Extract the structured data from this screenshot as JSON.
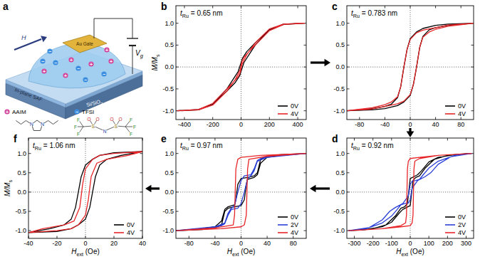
{
  "diagram": {
    "panel_label": "a",
    "field_label": "H",
    "gate_label": "Au Gate",
    "voltage_label": {
      "text": "V",
      "subscript": "g"
    },
    "layer_label": "In-plane SAF",
    "substrate_label": {
      "text": "Si/SiO",
      "subscript": "2"
    },
    "cation": {
      "name": "AAIM",
      "sign": "+",
      "atoms": [
        "N",
        "N"
      ]
    },
    "anion": {
      "name": "TFSI",
      "sign": "−",
      "atoms": [
        "F",
        "F",
        "F",
        "S",
        "O",
        "O",
        "N",
        "S",
        "O",
        "O",
        "F",
        "F",
        "F"
      ]
    }
  },
  "chart_data": [
    {
      "type": "line",
      "panel_label": "b",
      "annotation": {
        "symbol": "t",
        "subscript": "Ru",
        "text": " = 0.65 nm"
      },
      "y_label": {
        "text": "M/M",
        "subscript": "s"
      },
      "xlim": [
        -460,
        460
      ],
      "xticks": [
        -400,
        -200,
        0,
        200,
        400
      ],
      "ylim": [
        -1.2,
        1.4
      ],
      "yticks": [
        {
          "value": -1,
          "label": "-1.0"
        },
        {
          "value": -0.5,
          "label": "-0.5"
        },
        {
          "value": 0,
          "label": "0.0"
        },
        {
          "value": 0.5,
          "label": "0.5"
        },
        {
          "value": 1,
          "label": "1.0"
        }
      ],
      "legend": "lower right",
      "series": [
        {
          "name": "0V",
          "color": "#000000",
          "x": [
            450,
            300,
            200,
            100,
            40,
            10,
            0,
            -20,
            -60,
            -100,
            -200,
            -300,
            -450,
            -300,
            -200,
            -100,
            -40,
            -10,
            0,
            20,
            60,
            100,
            200,
            300,
            450
          ],
          "values": [
            1.0,
            0.98,
            0.85,
            0.55,
            0.35,
            0.2,
            0.1,
            -0.1,
            -0.3,
            -0.5,
            -0.85,
            -0.97,
            -1.0,
            -0.98,
            -0.85,
            -0.55,
            -0.35,
            -0.2,
            -0.1,
            0.1,
            0.3,
            0.5,
            0.85,
            0.97,
            1.0
          ]
        },
        {
          "name": "4V",
          "color": "#e8262a",
          "x": [
            450,
            300,
            200,
            100,
            50,
            20,
            5,
            -5,
            -40,
            -100,
            -200,
            -300,
            -450,
            -300,
            -200,
            -100,
            -50,
            -20,
            -5,
            5,
            40,
            100,
            200,
            300,
            450
          ],
          "values": [
            1.0,
            0.97,
            0.83,
            0.5,
            0.33,
            0.22,
            0.12,
            -0.05,
            -0.28,
            -0.55,
            -0.87,
            -0.98,
            -1.0,
            -0.97,
            -0.83,
            -0.5,
            -0.33,
            -0.22,
            -0.12,
            0.05,
            0.28,
            0.55,
            0.87,
            0.98,
            1.0
          ]
        }
      ]
    },
    {
      "type": "line",
      "panel_label": "c",
      "annotation": {
        "symbol": "t",
        "subscript": "Ru",
        "text": " = 0.783 nm"
      },
      "xlim": [
        -100,
        100
      ],
      "xticks": [
        -80,
        -40,
        0,
        40,
        80
      ],
      "ylim": [
        -1.2,
        1.4
      ],
      "yticks": [
        {
          "value": -1,
          "label": "-1.0"
        },
        {
          "value": -0.5,
          "label": "-0.5"
        },
        {
          "value": 0,
          "label": "0.0"
        },
        {
          "value": 0.5,
          "label": "0.5"
        },
        {
          "value": 1,
          "label": "1.0"
        }
      ],
      "legend": "lower right",
      "series": [
        {
          "name": "0V",
          "color": "#000000",
          "x": [
            100,
            60,
            40,
            20,
            10,
            0,
            -5,
            -10,
            -15,
            -20,
            -30,
            -40,
            -60,
            -100,
            -60,
            -40,
            -20,
            -10,
            0,
            5,
            10,
            15,
            20,
            30,
            40,
            60,
            100
          ],
          "values": [
            1.0,
            0.98,
            0.95,
            0.88,
            0.8,
            0.65,
            0.4,
            0.0,
            -0.45,
            -0.7,
            -0.85,
            -0.9,
            -0.95,
            -1.0,
            -0.98,
            -0.95,
            -0.88,
            -0.8,
            -0.65,
            -0.4,
            0.0,
            0.45,
            0.7,
            0.85,
            0.9,
            0.95,
            1.0
          ]
        },
        {
          "name": "4V",
          "color": "#e8262a",
          "x": [
            100,
            60,
            40,
            20,
            10,
            0,
            -5,
            -10,
            -15,
            -20,
            -30,
            -40,
            -60,
            -100,
            -60,
            -40,
            -20,
            -10,
            0,
            5,
            10,
            15,
            20,
            30,
            40,
            60,
            100
          ],
          "values": [
            1.0,
            0.96,
            0.9,
            0.84,
            0.78,
            0.63,
            0.4,
            0.0,
            -0.45,
            -0.68,
            -0.8,
            -0.86,
            -0.93,
            -1.0,
            -0.96,
            -0.9,
            -0.84,
            -0.78,
            -0.63,
            -0.4,
            0.0,
            0.45,
            0.68,
            0.8,
            0.86,
            0.93,
            1.0
          ]
        }
      ]
    },
    {
      "type": "line",
      "panel_label": "d",
      "annotation": {
        "symbol": "t",
        "subscript": "Ru",
        "text": " = 0.92 nm"
      },
      "x_label": {
        "text": "H",
        "subscript": "ext",
        "suffix": " (Oe)"
      },
      "xlim": [
        -340,
        340
      ],
      "xticks": [
        -300,
        -200,
        -100,
        0,
        100,
        200,
        300
      ],
      "ylim": [
        -1.2,
        1.4
      ],
      "yticks": [
        {
          "value": -1,
          "label": "-1.0"
        },
        {
          "value": -0.5,
          "label": "-0.5"
        },
        {
          "value": 0,
          "label": "0.0"
        },
        {
          "value": 0.5,
          "label": "0.5"
        },
        {
          "value": 1,
          "label": "1.0"
        }
      ],
      "legend": "lower right",
      "series": [
        {
          "name": "0V",
          "color": "#000000",
          "x": [
            330,
            250,
            150,
            100,
            60,
            40,
            20,
            0,
            -8,
            -15,
            -30,
            -50,
            -80,
            -130,
            -200,
            -330,
            -250,
            -150,
            -100,
            -60,
            -40,
            -20,
            0,
            8,
            15,
            30,
            50,
            80,
            130,
            200,
            330
          ],
          "values": [
            1.0,
            0.98,
            0.9,
            0.78,
            0.55,
            0.45,
            0.4,
            0.35,
            0.0,
            -0.3,
            -0.38,
            -0.42,
            -0.62,
            -0.85,
            -0.95,
            -1.0,
            -0.98,
            -0.9,
            -0.78,
            -0.55,
            -0.45,
            -0.4,
            -0.35,
            0.0,
            0.3,
            0.38,
            0.42,
            0.62,
            0.85,
            0.95,
            1.0
          ]
        },
        {
          "name": "2V",
          "color": "#2a3fd6",
          "x": [
            330,
            250,
            150,
            100,
            70,
            50,
            30,
            10,
            0,
            -10,
            -40,
            -80,
            -110,
            -150,
            -220,
            -330,
            -250,
            -150,
            -100,
            -70,
            -50,
            -30,
            -10,
            0,
            10,
            40,
            80,
            110,
            150,
            220,
            330
          ],
          "values": [
            1.0,
            0.97,
            0.8,
            0.62,
            0.45,
            0.33,
            0.3,
            0.28,
            0.2,
            -0.1,
            -0.3,
            -0.4,
            -0.5,
            -0.72,
            -0.92,
            -1.0,
            -0.97,
            -0.8,
            -0.62,
            -0.45,
            -0.33,
            -0.3,
            -0.28,
            -0.2,
            0.1,
            0.3,
            0.4,
            0.5,
            0.72,
            0.92,
            1.0
          ]
        },
        {
          "name": "4V",
          "color": "#e8262a",
          "x": [
            330,
            150,
            50,
            0,
            -10,
            -15,
            -20,
            -25,
            -50,
            -150,
            -330,
            -150,
            -50,
            0,
            10,
            15,
            20,
            25,
            50,
            150,
            330
          ],
          "values": [
            1.0,
            0.95,
            0.9,
            0.87,
            0.8,
            0.6,
            -0.6,
            -0.8,
            -0.87,
            -0.95,
            -1.0,
            -0.95,
            -0.9,
            -0.87,
            -0.8,
            -0.6,
            0.6,
            0.8,
            0.87,
            0.95,
            1.0
          ]
        }
      ]
    },
    {
      "type": "line",
      "panel_label": "e",
      "annotation": {
        "symbol": "t",
        "subscript": "Ru",
        "text": " = 0.97 nm"
      },
      "x_label": {
        "text": "H",
        "subscript": "ext",
        "suffix": " (Oe)"
      },
      "xlim": [
        -100,
        100
      ],
      "xticks": [
        -80,
        -40,
        0,
        40,
        80
      ],
      "ylim": [
        -1.2,
        1.4
      ],
      "yticks": [
        {
          "value": -1,
          "label": "-1.0"
        },
        {
          "value": -0.5,
          "label": "-0.5"
        },
        {
          "value": 0,
          "label": "0.0"
        },
        {
          "value": 0.5,
          "label": "0.5"
        },
        {
          "value": 1,
          "label": "1.0"
        }
      ],
      "legend": "lower right",
      "series": [
        {
          "name": "0V",
          "color": "#000000",
          "x": [
            100,
            60,
            40,
            30,
            25,
            20,
            10,
            0,
            -5,
            -8,
            -10,
            -20,
            -25,
            -30,
            -40,
            -60,
            -100,
            -60,
            -40,
            -30,
            -25,
            -20,
            -10,
            0,
            5,
            8,
            10,
            20,
            25,
            30,
            40,
            60,
            100
          ],
          "values": [
            1.0,
            0.97,
            0.93,
            0.85,
            0.5,
            0.42,
            0.38,
            0.35,
            0.2,
            -0.2,
            -0.33,
            -0.38,
            -0.45,
            -0.75,
            -0.9,
            -0.95,
            -1.0,
            -0.97,
            -0.93,
            -0.85,
            -0.5,
            -0.42,
            -0.38,
            -0.35,
            -0.2,
            0.2,
            0.33,
            0.38,
            0.45,
            0.75,
            0.9,
            0.95,
            1.0
          ]
        },
        {
          "name": "2V",
          "color": "#2a3fd6",
          "x": [
            100,
            50,
            30,
            25,
            20,
            15,
            5,
            0,
            -5,
            -10,
            -15,
            -20,
            -25,
            -40,
            -100,
            -50,
            -30,
            -25,
            -20,
            -15,
            -5,
            0,
            5,
            10,
            15,
            20,
            25,
            40,
            100
          ],
          "values": [
            1.0,
            0.95,
            0.87,
            0.82,
            0.6,
            0.45,
            0.42,
            0.3,
            0.0,
            -0.35,
            -0.42,
            -0.55,
            -0.8,
            -0.9,
            -1.0,
            -0.95,
            -0.87,
            -0.82,
            -0.6,
            -0.45,
            -0.42,
            -0.3,
            0.0,
            0.35,
            0.42,
            0.55,
            0.8,
            0.9,
            1.0
          ]
        },
        {
          "name": "4V",
          "color": "#e8262a",
          "x": [
            100,
            30,
            0,
            -5,
            -8,
            -10,
            -12,
            -40,
            -100,
            -30,
            0,
            5,
            8,
            10,
            12,
            40,
            100
          ],
          "values": [
            1.0,
            0.95,
            0.9,
            0.85,
            0.6,
            -0.6,
            -0.85,
            -0.93,
            -1.0,
            -0.95,
            -0.9,
            -0.85,
            -0.6,
            0.6,
            0.85,
            0.93,
            1.0
          ]
        }
      ]
    },
    {
      "type": "line",
      "panel_label": "f",
      "annotation": {
        "symbol": "t",
        "subscript": "Ru",
        "text": " = 1.06 nm"
      },
      "y_label": {
        "text": "M/M",
        "subscript": "s"
      },
      "x_label": {
        "text": "H",
        "subscript": "ext",
        "suffix": " (Oe)"
      },
      "xlim": [
        -40,
        40
      ],
      "xticks": [
        -40,
        -20,
        0,
        20,
        40
      ],
      "ylim": [
        -1.2,
        1.4
      ],
      "yticks": [
        {
          "value": -1,
          "label": "-1.0"
        },
        {
          "value": -0.5,
          "label": "-0.5"
        },
        {
          "value": 0,
          "label": "0.0"
        },
        {
          "value": 0.5,
          "label": "0.5"
        },
        {
          "value": 1,
          "label": "1.0"
        }
      ],
      "legend": "lower right",
      "series": [
        {
          "name": "0V",
          "color": "#000000",
          "x": [
            40,
            20,
            10,
            5,
            0,
            -3,
            -5,
            -7,
            -10,
            -15,
            -25,
            -40,
            -20,
            -10,
            -5,
            0,
            3,
            5,
            7,
            10,
            15,
            25,
            40
          ],
          "values": [
            1.05,
            1.02,
            0.95,
            0.85,
            0.7,
            0.4,
            0.0,
            -0.4,
            -0.7,
            -0.85,
            -0.95,
            -1.05,
            -1.02,
            -0.95,
            -0.85,
            -0.7,
            -0.4,
            0.0,
            0.4,
            0.7,
            0.85,
            0.95,
            1.05
          ]
        },
        {
          "name": "4V",
          "color": "#e8262a",
          "x": [
            40,
            20,
            10,
            5,
            0,
            -2,
            -4,
            -8,
            -15,
            -30,
            -40,
            -20,
            -10,
            -5,
            0,
            2,
            4,
            8,
            15,
            30,
            40
          ],
          "values": [
            1.05,
            1.0,
            0.95,
            0.85,
            0.6,
            0.2,
            -0.4,
            -0.75,
            -0.85,
            -0.95,
            -1.05,
            -1.0,
            -0.95,
            -0.85,
            -0.6,
            -0.2,
            0.4,
            0.75,
            0.85,
            0.95,
            1.05
          ]
        }
      ]
    }
  ]
}
